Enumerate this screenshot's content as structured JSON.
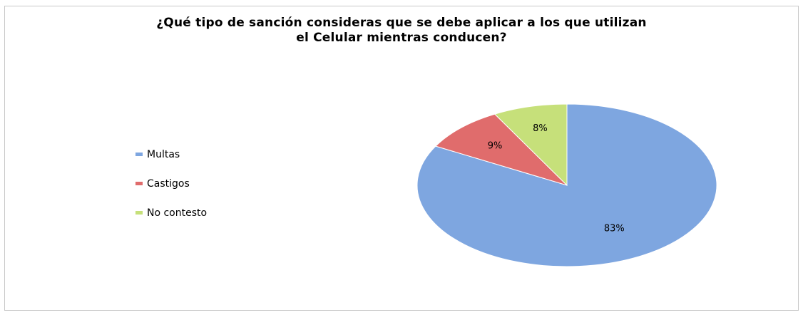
{
  "chart_data": {
    "type": "pie",
    "title_lines": [
      "¿Qué tipo de sanción consideras que se debe aplicar a los que utilizan",
      "el Celular mientras conducen?"
    ],
    "categories": [
      "Multas",
      "Castigos",
      "No contesto"
    ],
    "values": [
      83,
      9,
      8
    ],
    "labels": [
      "83%",
      "9%",
      "8%"
    ],
    "colors": [
      "#7ea6e0",
      "#e06c6c",
      "#c6e07a"
    ],
    "legend_position": "left"
  }
}
